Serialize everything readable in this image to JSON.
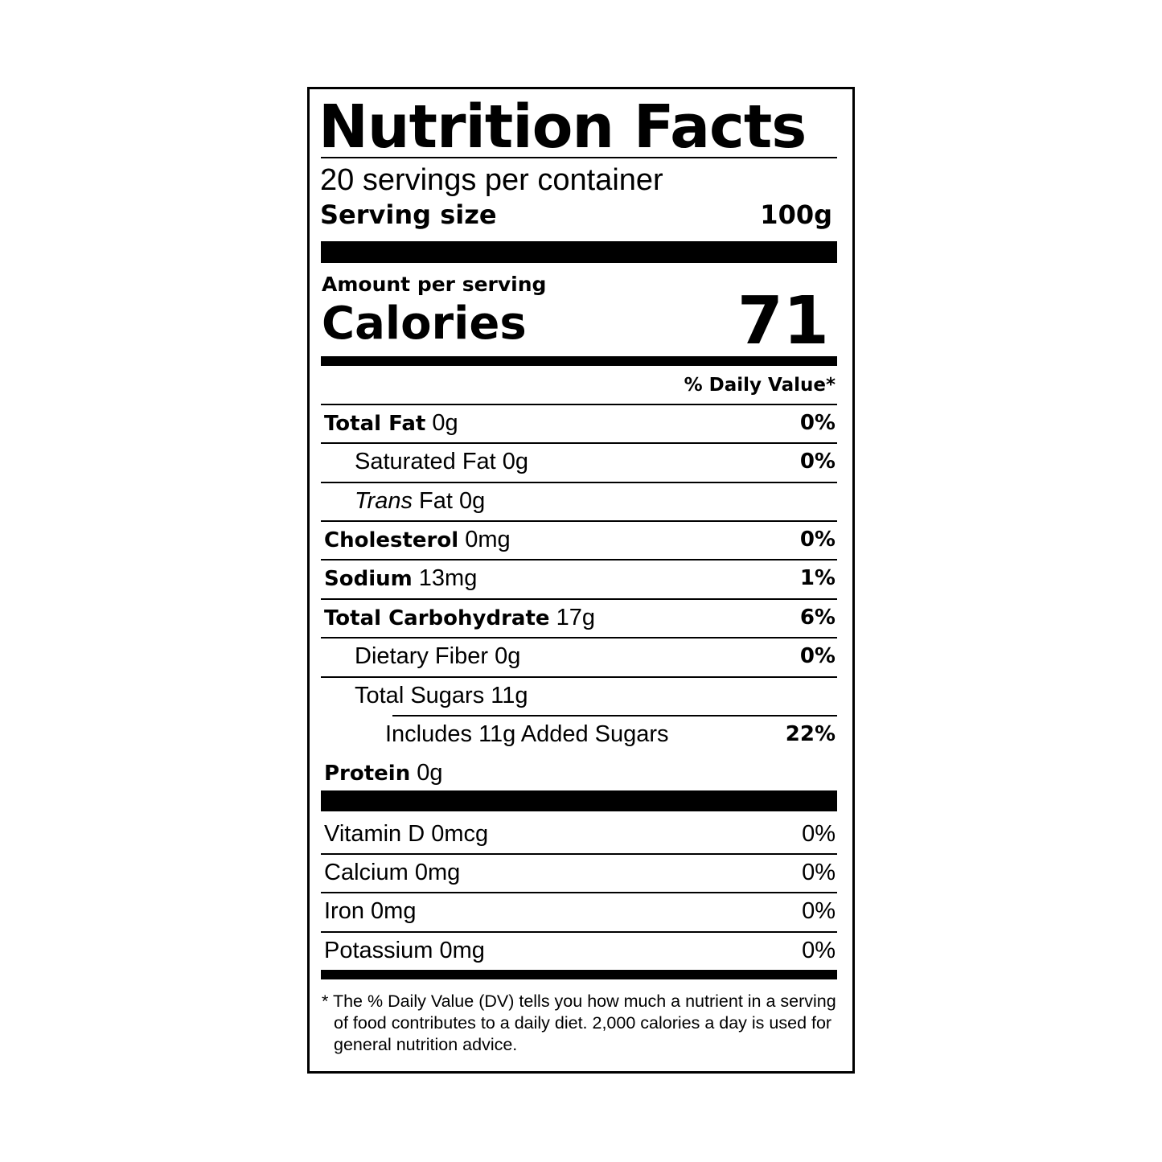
{
  "title": "Nutrition Facts",
  "servings_per_container": "20 servings per container",
  "serving_size": {
    "label": "Serving size",
    "value": "100g"
  },
  "amount_per_serving": "Amount per serving",
  "calories": {
    "label": "Calories",
    "value": "71"
  },
  "daily_value_header": "% Daily Value*",
  "nutrients": [
    {
      "name": "Total Fat",
      "amount": "0g",
      "dv": "0%"
    },
    {
      "name": "Saturated Fat",
      "amount": "0g",
      "dv": "0%"
    },
    {
      "name": "Trans",
      "name_suffix": "Fat",
      "amount": "0g",
      "dv": ""
    },
    {
      "name": "Cholesterol",
      "amount": "0mg",
      "dv": "0%"
    },
    {
      "name": "Sodium",
      "amount": "13mg",
      "dv": "1%"
    },
    {
      "name": "Total Carbohydrate",
      "amount": "17g",
      "dv": "6%"
    },
    {
      "name": "Dietary Fiber",
      "amount": "0g",
      "dv": "0%"
    },
    {
      "name": "Total Sugars",
      "amount": "11g",
      "dv": ""
    },
    {
      "name": "Includes 11g Added Sugars",
      "amount": "",
      "dv": "22%"
    },
    {
      "name": "Protein",
      "amount": "0g",
      "dv": ""
    }
  ],
  "vitamins": [
    {
      "name": "Vitamin D",
      "amount": "0mcg",
      "dv": "0%"
    },
    {
      "name": "Calcium",
      "amount": "0mg",
      "dv": "0%"
    },
    {
      "name": "Iron",
      "amount": "0mg",
      "dv": "0%"
    },
    {
      "name": "Potassium",
      "amount": "0mg",
      "dv": "0%"
    }
  ],
  "footnote": "* The % Daily Value (DV) tells you how much a nutrient in a serving of food contributes to a daily diet. 2,000 calories a day is used for general nutrition advice."
}
